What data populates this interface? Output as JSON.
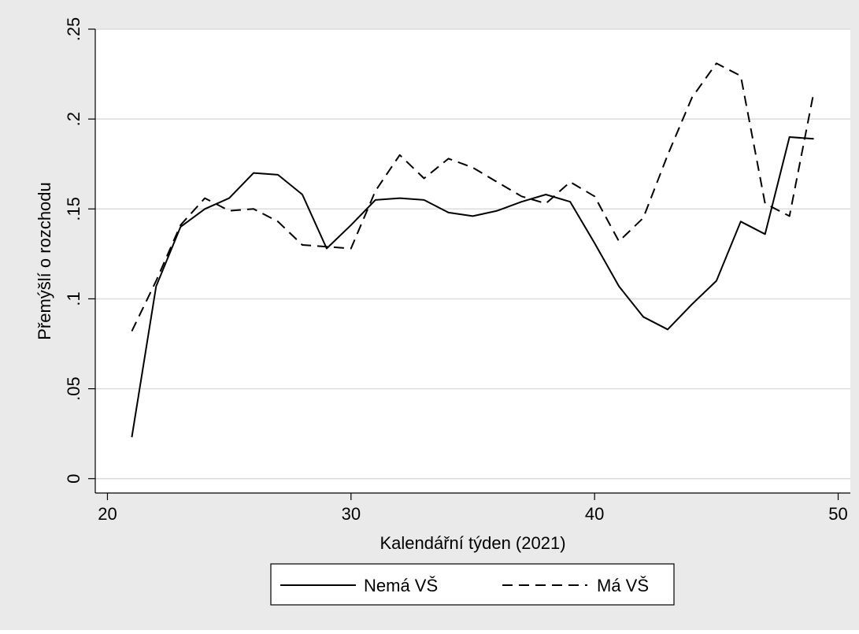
{
  "chart_data": {
    "type": "line",
    "title": "",
    "xlabel": "Kalendářní týden (2021)",
    "ylabel": "Přemýšlí o rozchodu",
    "xlim": [
      19.5,
      50.5
    ],
    "ylim": [
      -0.008,
      0.25
    ],
    "xticks": [
      20,
      30,
      40,
      50
    ],
    "xtick_labels": [
      "20",
      "30",
      "40",
      "50"
    ],
    "yticks": [
      0,
      0.05,
      0.1,
      0.15,
      0.2,
      0.25
    ],
    "ytick_labels": [
      "0",
      ".05",
      ".1",
      ".15",
      ".2",
      ".25"
    ],
    "grid": "horizontal",
    "legend": "bottom",
    "x": [
      21,
      22,
      23,
      24,
      25,
      26,
      27,
      28,
      29,
      30,
      31,
      32,
      33,
      34,
      35,
      36,
      37,
      38,
      39,
      40,
      41,
      42,
      43,
      44,
      45,
      46,
      47,
      48,
      49
    ],
    "series": [
      {
        "name": "Nemá VŠ",
        "style": "solid",
        "values": [
          0.023,
          0.107,
          0.14,
          0.15,
          0.156,
          0.17,
          0.169,
          0.158,
          0.128,
          0.141,
          0.155,
          0.156,
          0.155,
          0.148,
          0.146,
          0.149,
          0.154,
          0.158,
          0.154,
          0.131,
          0.107,
          0.09,
          0.083,
          0.097,
          0.11,
          0.143,
          0.136,
          0.19,
          0.189
        ]
      },
      {
        "name": "Má VŠ",
        "style": "dashed",
        "values": [
          0.082,
          0.11,
          0.141,
          0.156,
          0.149,
          0.15,
          0.143,
          0.13,
          0.129,
          0.128,
          0.16,
          0.18,
          0.167,
          0.178,
          0.173,
          0.165,
          0.157,
          0.153,
          0.165,
          0.157,
          0.132,
          0.145,
          0.18,
          0.212,
          0.231,
          0.224,
          0.153,
          0.146,
          0.215
        ]
      }
    ]
  }
}
